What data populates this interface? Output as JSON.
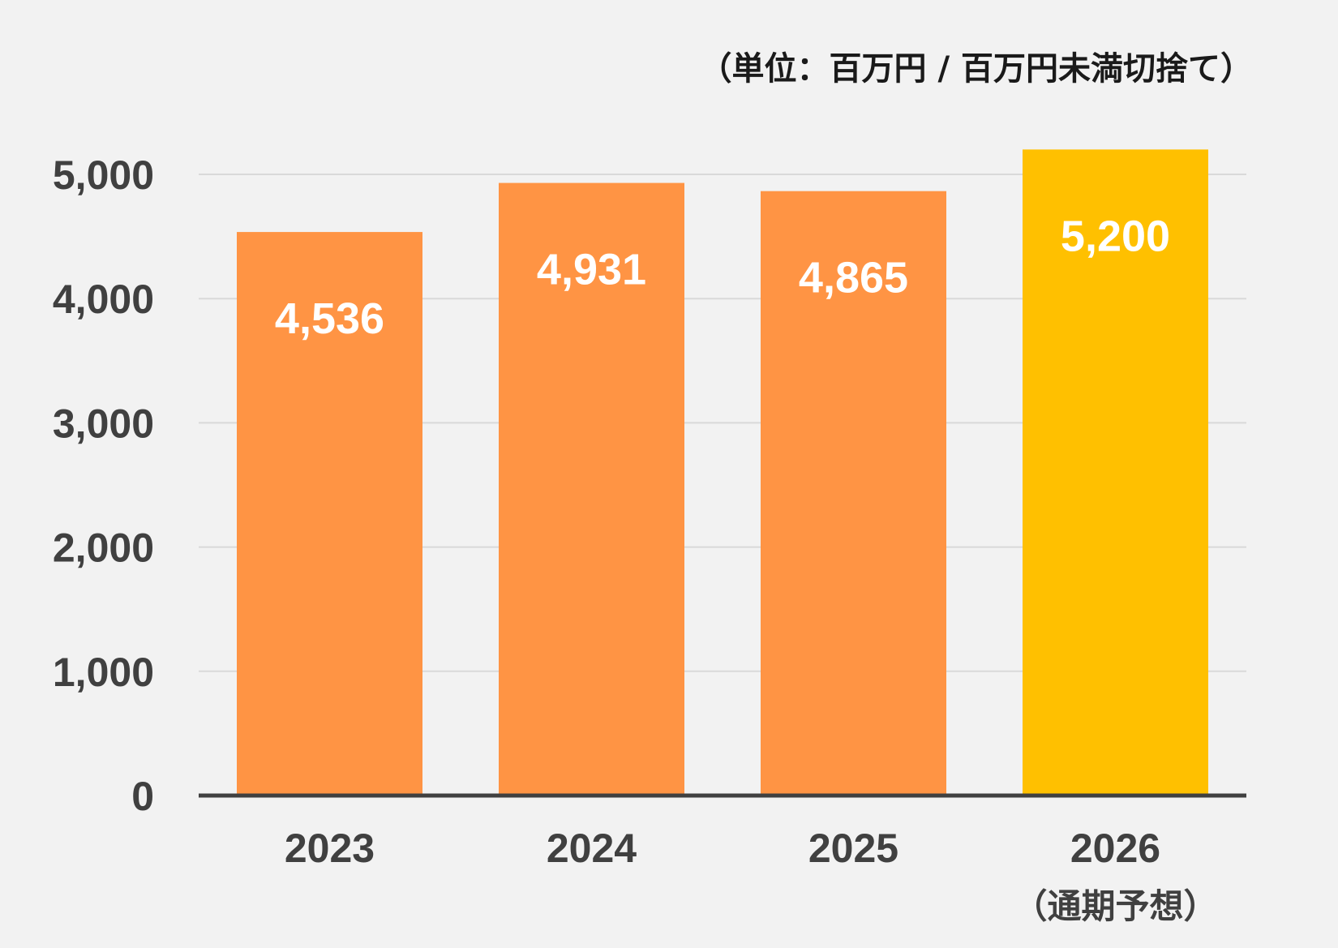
{
  "chart_data": {
    "type": "bar",
    "unit_note": "（単位：百万円 / 百万円未満切捨て）",
    "categories": [
      "2023",
      "2024",
      "2025",
      "2026"
    ],
    "category_sublabels": [
      "",
      "",
      "",
      "（通期予想）"
    ],
    "values": [
      4536,
      4931,
      4865,
      5200
    ],
    "data_labels": [
      "4,536",
      "4,931",
      "4,865",
      "5,200"
    ],
    "bar_colors": [
      "#ff9444",
      "#ff9444",
      "#ff9444",
      "#ffc000"
    ],
    "ylim": [
      0,
      5000
    ],
    "yticks": [
      0,
      1000,
      2000,
      3000,
      4000,
      5000
    ],
    "ytick_labels": [
      "0",
      "1,000",
      "2,000",
      "3,000",
      "4,000",
      "5,000"
    ],
    "grid": true,
    "title": "",
    "xlabel": "",
    "ylabel": ""
  }
}
